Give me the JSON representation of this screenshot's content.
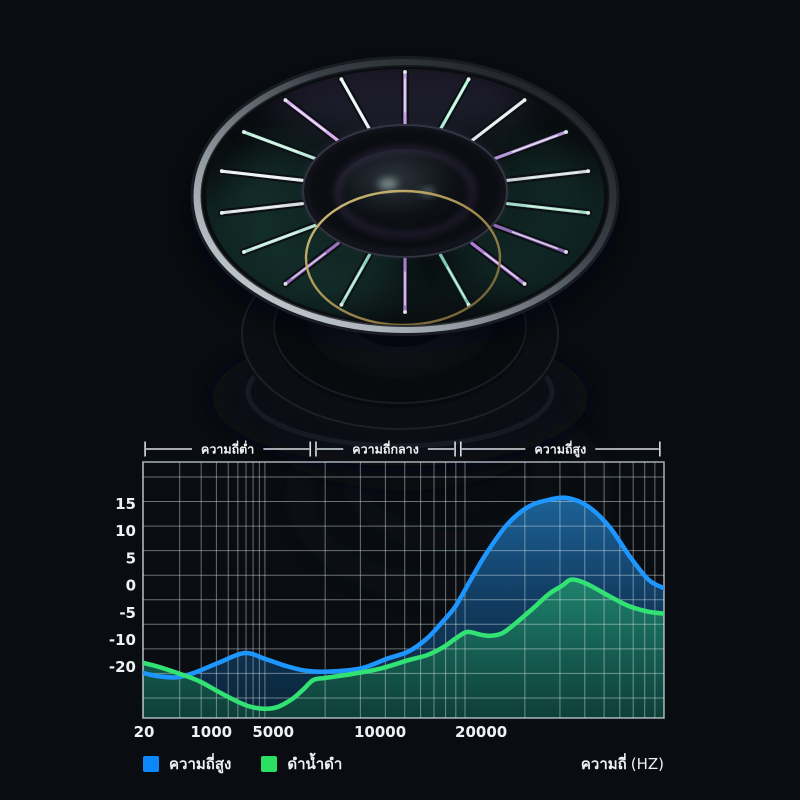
{
  "meta": {
    "background": "#090c10",
    "text_color": "#eef2f5",
    "grid_color": "#dfe8ee"
  },
  "chart_data": {
    "type": "area",
    "title": "",
    "x_axis": {
      "title": "ความถี่ (HZ)",
      "scale": "log",
      "decade_boundaries": [
        0,
        0.234,
        0.618,
        1
      ],
      "tick_labels": [
        {
          "text": "20",
          "pos": 0.002
        },
        {
          "text": "1000",
          "pos": 0.131
        },
        {
          "text": "5000",
          "pos": 0.25
        },
        {
          "text": "10000",
          "pos": 0.455
        },
        {
          "text": "20000",
          "pos": 0.649
        }
      ]
    },
    "y_axis": {
      "tick_labels": [
        "15",
        "10",
        "5",
        "0",
        "-5",
        "-10",
        "-20"
      ],
      "implied_unit": "dB",
      "range_shown": [
        20,
        -25
      ]
    },
    "range_brackets": [
      {
        "label": "ความถี่ต่ำ",
        "from": 0.004,
        "to": 0.321
      },
      {
        "label": "ความถี่กลาง",
        "from": 0.332,
        "to": 0.599
      },
      {
        "label": "ความถี่สูง",
        "from": 0.61,
        "to": 0.992
      }
    ],
    "grid": true,
    "legend_position": "bottom",
    "series": [
      {
        "name": "ความถี่สูง",
        "stroke": "#1e96ff",
        "fill_top": "#1d659c",
        "fill_mid": "#123f66",
        "fill_bottom": "#0a2439",
        "points": [
          [
            0.0,
            -16.3
          ],
          [
            0.03,
            -16.9
          ],
          [
            0.065,
            -17.1
          ],
          [
            0.1,
            -16.2
          ],
          [
            0.145,
            -14.4
          ],
          [
            0.195,
            -12.6
          ],
          [
            0.235,
            -13.7
          ],
          [
            0.275,
            -15.0
          ],
          [
            0.315,
            -15.9
          ],
          [
            0.365,
            -16.0
          ],
          [
            0.42,
            -15.4
          ],
          [
            0.47,
            -13.6
          ],
          [
            0.51,
            -12.3
          ],
          [
            0.545,
            -9.9
          ],
          [
            0.575,
            -6.8
          ],
          [
            0.6,
            -3.9
          ],
          [
            0.628,
            0.8
          ],
          [
            0.66,
            6.0
          ],
          [
            0.7,
            11.3
          ],
          [
            0.74,
            14.5
          ],
          [
            0.78,
            15.8
          ],
          [
            0.816,
            16.1
          ],
          [
            0.855,
            14.5
          ],
          [
            0.895,
            10.8
          ],
          [
            0.935,
            5.2
          ],
          [
            0.97,
            1.0
          ],
          [
            1.0,
            -0.6
          ]
        ]
      },
      {
        "name": "ดำน้ำดำ",
        "stroke": "#32e273",
        "fill_top": "#1f8a6f",
        "fill_mid": "#176354",
        "fill_bottom": "#0e4038",
        "points": [
          [
            0.0,
            -14.4
          ],
          [
            0.035,
            -15.3
          ],
          [
            0.075,
            -16.6
          ],
          [
            0.11,
            -17.9
          ],
          [
            0.155,
            -20.3
          ],
          [
            0.205,
            -22.5
          ],
          [
            0.25,
            -22.8
          ],
          [
            0.285,
            -21.2
          ],
          [
            0.307,
            -19.4
          ],
          [
            0.327,
            -17.6
          ],
          [
            0.35,
            -17.2
          ],
          [
            0.4,
            -16.5
          ],
          [
            0.455,
            -15.5
          ],
          [
            0.51,
            -13.9
          ],
          [
            0.545,
            -13.0
          ],
          [
            0.575,
            -11.6
          ],
          [
            0.6,
            -9.9
          ],
          [
            0.622,
            -8.7
          ],
          [
            0.648,
            -9.2
          ],
          [
            0.665,
            -9.4
          ],
          [
            0.69,
            -8.9
          ],
          [
            0.72,
            -6.7
          ],
          [
            0.75,
            -4.2
          ],
          [
            0.78,
            -1.6
          ],
          [
            0.805,
            -0.1
          ],
          [
            0.822,
            1.0
          ],
          [
            0.85,
            0.3
          ],
          [
            0.89,
            -1.8
          ],
          [
            0.93,
            -3.8
          ],
          [
            0.968,
            -4.9
          ],
          [
            1.0,
            -5.3
          ]
        ]
      }
    ]
  },
  "legend": {
    "items": [
      {
        "label": "ความถี่สูง",
        "color": "#0b87fa"
      },
      {
        "label": "ดำน้ำดำ",
        "color": "#2bdf63"
      }
    ],
    "axis_title": "ความถี่",
    "axis_unit": "(HZ)"
  }
}
